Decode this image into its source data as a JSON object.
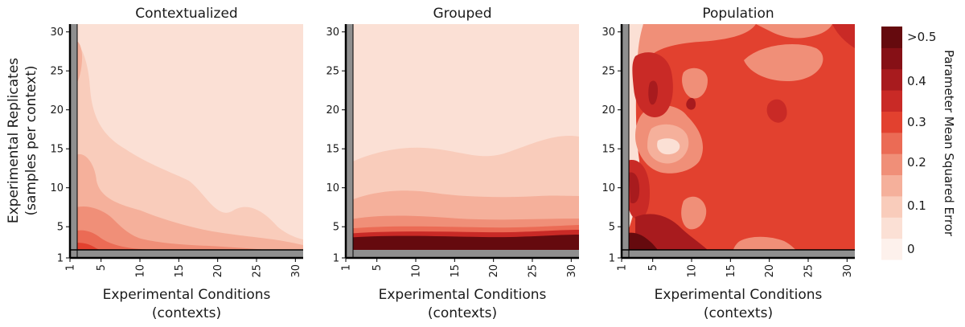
{
  "chart_data": {
    "type": "heatmap",
    "panels": [
      {
        "title": "Contextualized"
      },
      {
        "title": "Grouped"
      },
      {
        "title": "Population"
      }
    ],
    "xlabel_line1": "Experimental Conditions",
    "xlabel_line2": "(contexts)",
    "ylabel_line1": "Experimental Replicates",
    "ylabel_line2": "(samples per context)",
    "x_ticks": [
      "1",
      "5",
      "10",
      "15",
      "20",
      "25",
      "30"
    ],
    "y_ticks": [
      "1",
      "5",
      "10",
      "15",
      "20",
      "25",
      "30"
    ],
    "xlim": [
      1,
      31
    ],
    "ylim": [
      1,
      31
    ],
    "colorbar": {
      "label": "Parameter Mean Squared Error",
      "tick_labels": [
        ">0.5",
        "0.4",
        "0.3",
        "0.2",
        "0.1",
        "0"
      ],
      "levels": [
        "#fdf1ec",
        "#fbe0d5",
        "#f9ccbb",
        "#f5b09b",
        "#f08f78",
        "#eb6b55",
        "#e2412f",
        "#c92a26",
        "#a81b1e",
        "#861016",
        "#650a0e"
      ]
    }
  }
}
